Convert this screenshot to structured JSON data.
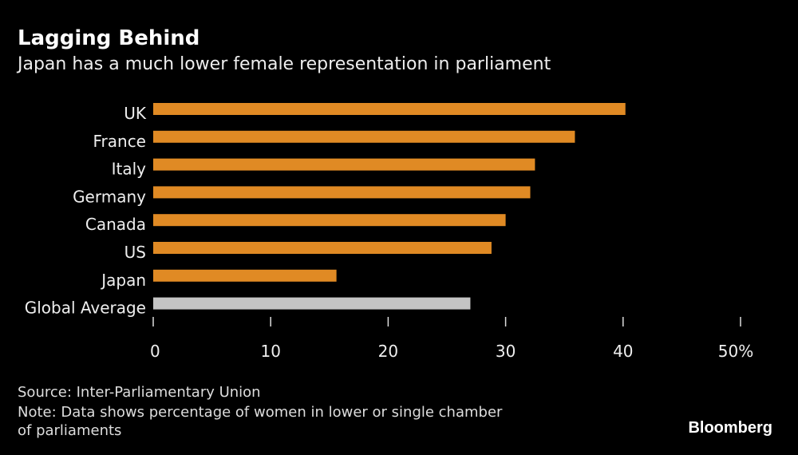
{
  "chart_data": {
    "type": "bar",
    "orientation": "horizontal",
    "title": "Lagging Behind",
    "subtitle": "Japan has a much lower female representation in parliament",
    "categories": [
      "UK",
      "France",
      "Italy",
      "Germany",
      "Canada",
      "US",
      "Japan",
      "Global Average"
    ],
    "values": [
      40.2,
      35.9,
      32.5,
      32.1,
      30.0,
      28.8,
      15.6,
      27.0
    ],
    "colors": [
      "#e08a24",
      "#e08a24",
      "#e08a24",
      "#e08a24",
      "#e08a24",
      "#e08a24",
      "#e08a24",
      "#c4c4c4"
    ],
    "xlim": [
      0,
      50
    ],
    "xticks": [
      "0",
      "10",
      "20",
      "30",
      "40",
      "50%"
    ],
    "xtick_values": [
      0,
      10,
      20,
      30,
      40,
      50
    ],
    "grid": false
  },
  "footer": {
    "source": "Source: Inter-Parliamentary Union",
    "note_line1": "Note: Data shows percentage of women in lower or single chamber",
    "note_line2": "of parliaments",
    "logo": "Bloomberg"
  }
}
